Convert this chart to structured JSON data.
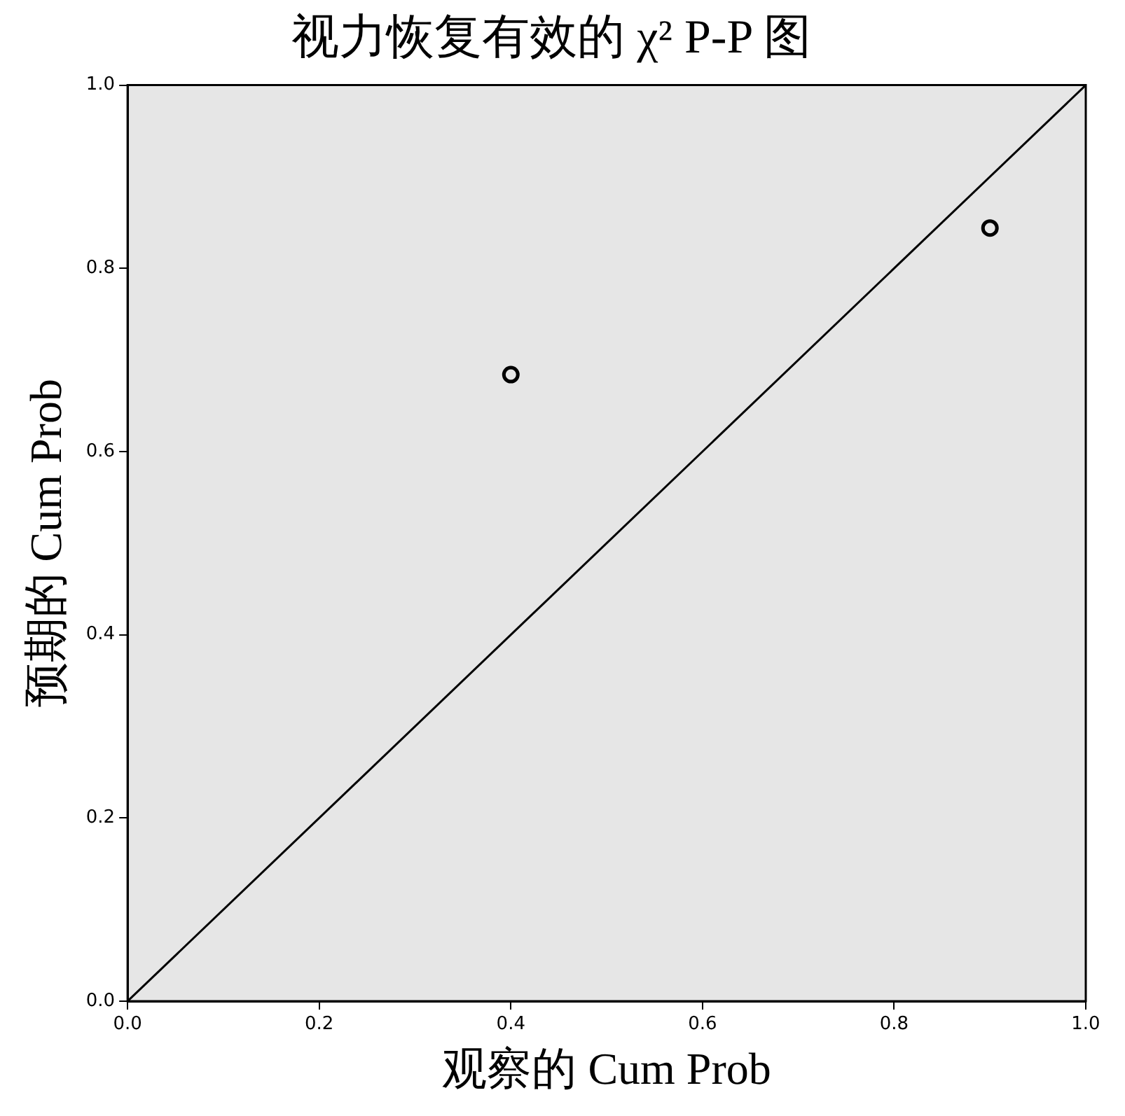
{
  "chart_data": {
    "type": "scatter",
    "title": "视力恢复有效的 χ² P-P 图",
    "xlabel": "观察的 Cum Prob",
    "ylabel": "预期的 Cum Prob",
    "series": [
      {
        "color": "#000000",
        "marker": "circle",
        "x": [
          0.4,
          0.9
        ],
        "values": [
          0.684,
          0.844
        ]
      },
      {
        "type": "line",
        "color": "#000000",
        "marker": "none",
        "line_style": "solid",
        "x": [
          0,
          1
        ],
        "values": [
          0,
          1
        ]
      }
    ],
    "xlim": [
      0,
      1
    ],
    "ylim": [
      0,
      1
    ],
    "xticks": [
      {
        "value": 0,
        "label": "0.0"
      },
      {
        "value": 0.2,
        "label": "0.2"
      },
      {
        "value": 0.4,
        "label": "0.4"
      },
      {
        "value": 0.6,
        "label": "0.6"
      },
      {
        "value": 0.8,
        "label": "0.8"
      },
      {
        "value": 1,
        "label": "1.0"
      }
    ],
    "yticks": [
      {
        "value": 0,
        "label": "0.0"
      },
      {
        "value": 0.2,
        "label": "0.2"
      },
      {
        "value": 0.4,
        "label": "0.4"
      },
      {
        "value": 0.6,
        "label": "0.6"
      },
      {
        "value": 0.8,
        "label": "0.8"
      },
      {
        "value": 1,
        "label": "1.0"
      }
    ],
    "grid": false,
    "legend": false
  }
}
